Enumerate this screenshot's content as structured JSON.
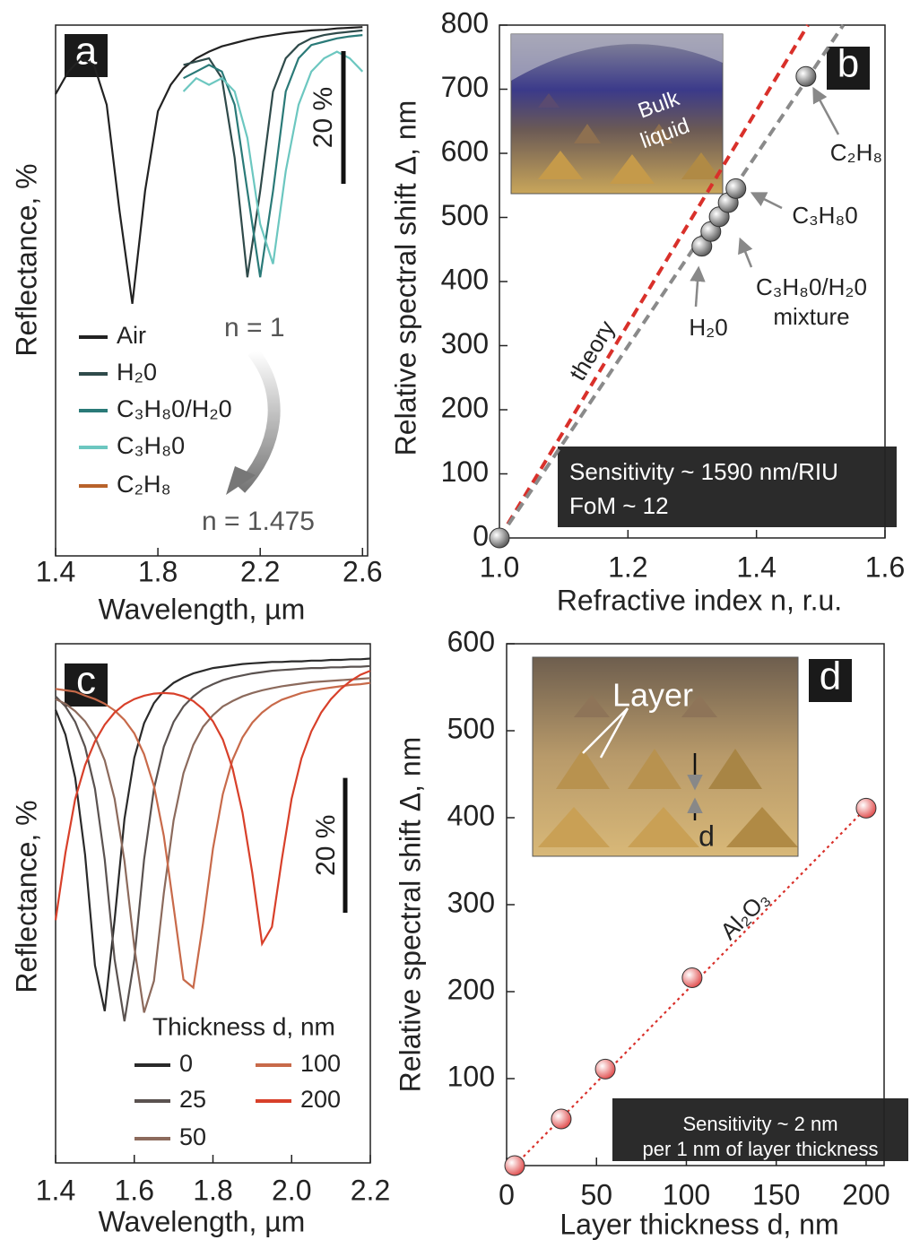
{
  "chart_data": [
    {
      "type": "line",
      "panel_label": "a",
      "x": [
        1.4,
        1.45,
        1.5,
        1.55,
        1.6,
        1.65,
        1.7,
        1.75,
        1.8,
        1.85,
        1.9,
        1.95,
        2.0,
        2.05,
        2.1,
        2.15,
        2.2,
        2.25,
        2.3,
        2.35,
        2.4,
        2.45,
        2.5,
        2.55,
        2.6
      ],
      "xlim": [
        1.4,
        2.62
      ],
      "ylim": [
        0,
        80
      ],
      "xticks": [
        1.4,
        1.8,
        2.2,
        2.6
      ],
      "xlabel": "Wavelength, µm",
      "ylabel": "Reflectance, %",
      "legend": "lower left",
      "series": [
        {
          "name": "Air",
          "color": "#222222",
          "values": [
            69.6,
            73,
            75,
            74,
            68,
            52,
            38,
            55,
            67,
            71,
            73.5,
            75,
            76,
            76.8,
            77.3,
            77.8,
            78.2,
            78.5,
            78.8,
            79,
            79.2,
            79.3,
            79.5,
            79.6,
            79.7
          ]
        },
        {
          "name": "H₂0",
          "color": "#2f4a4a",
          "values": [
            null,
            null,
            null,
            null,
            null,
            null,
            null,
            null,
            null,
            null,
            74,
            74.5,
            75,
            72,
            60,
            42,
            55,
            70,
            75,
            77,
            78,
            78.5,
            78.8,
            79,
            79.2
          ]
        },
        {
          "name": "C₃H₈0/H₂0",
          "color": "#2a7a78",
          "values": [
            null,
            null,
            null,
            null,
            null,
            null,
            null,
            null,
            null,
            null,
            72,
            73,
            74,
            73,
            68,
            55,
            42,
            55,
            70,
            75,
            77,
            77.5,
            78,
            78.3,
            78.5
          ]
        },
        {
          "name": "C₃H₈0",
          "color": "#6cc7c0",
          "values": [
            null,
            null,
            null,
            null,
            null,
            null,
            null,
            null,
            null,
            null,
            70,
            72,
            71,
            72,
            70,
            63,
            50,
            44,
            58,
            68,
            73,
            75,
            76,
            75,
            73
          ]
        },
        {
          "name": "C₂H₈",
          "color": "#b8622a",
          "values": [
            null,
            null,
            null,
            null,
            null,
            null,
            null,
            null,
            null,
            null,
            null,
            null,
            null,
            null,
            null,
            null,
            null,
            null,
            null,
            null,
            null,
            null,
            null,
            null,
            null
          ]
        }
      ],
      "scale_bar": {
        "value": 20,
        "label": "20 %"
      },
      "annotations": [
        "n = 1",
        "n = 1.475"
      ]
    },
    {
      "type": "scatter",
      "panel_label": "b",
      "xlim": [
        1.0,
        1.6
      ],
      "ylim": [
        0,
        800
      ],
      "xticks": [
        {
          "value": 1.0,
          "label": "1.0"
        },
        1.2,
        1.4,
        1.6
      ],
      "yticks": [
        0,
        100,
        200,
        300,
        400,
        500,
        600,
        700,
        800
      ],
      "xlabel": "Refractive index n, r.u.",
      "ylabel": "Relative spectral shift Δ, nm",
      "series": [
        {
          "name": "theory",
          "color": "#d9302a",
          "mode": "line",
          "dash": "dashed",
          "x": [
            1.0,
            1.48
          ],
          "values": [
            0,
            800
          ]
        },
        {
          "color": "#8a8a8a",
          "mode": "line",
          "dash": "dashed",
          "x": [
            1.0,
            1.535
          ],
          "values": [
            0,
            800
          ]
        },
        {
          "color": "#555555",
          "mode": "markers",
          "x": [
            1.0,
            1.315,
            1.329,
            1.342,
            1.356,
            1.368,
            1.477
          ],
          "values": [
            0,
            455,
            478,
            501,
            523,
            545,
            720
          ]
        }
      ],
      "annotations": [
        "Bulk",
        "liquid",
        "C₂H₈",
        "C₃H₈0",
        "C₃H₈0/H₂0",
        "mixture",
        "H₂0",
        "Sensitivity ~ 1590 nm/RIU",
        "FoM ~ 12"
      ]
    },
    {
      "type": "line",
      "panel_label": "c",
      "x": [
        1.4,
        1.425,
        1.45,
        1.475,
        1.5,
        1.525,
        1.55,
        1.575,
        1.6,
        1.625,
        1.65,
        1.675,
        1.7,
        1.725,
        1.75,
        1.775,
        1.8,
        1.825,
        1.85,
        1.875,
        1.9,
        1.925,
        1.95,
        1.975,
        2.0,
        2.025,
        2.05,
        2.075,
        2.1,
        2.125,
        2.15,
        2.175,
        2.2
      ],
      "xlim": [
        1.4,
        2.2
      ],
      "ylim": [
        0,
        77
      ],
      "xticks": [
        1.4,
        1.6,
        1.8,
        {
          "value": 2.0,
          "label": "2.0"
        },
        2.2
      ],
      "xlabel": "Wavelength, µm",
      "ylabel": "Reflectance, %",
      "legend": "lower center",
      "series": [
        {
          "name": "0",
          "color": "#2a2a2a",
          "values": [
            67.2,
            63.5,
            57.1,
            45.7,
            29.3,
            22.5,
            36,
            51,
            60.1,
            65.2,
            68.2,
            70,
            71.2,
            72,
            72.6,
            73,
            73.4,
            73.6,
            73.8,
            74,
            74.1,
            74.2,
            74.3,
            74.3,
            74.4,
            74.4,
            74.5,
            74.5,
            74.6,
            74.6,
            74.7,
            74.7,
            74.8
          ]
        },
        {
          "name": "25",
          "color": "#5a5250",
          "values": [
            69.2,
            67.7,
            65.4,
            61.7,
            55.5,
            45,
            30.2,
            21,
            30.2,
            45,
            55.5,
            61.7,
            65.4,
            67.7,
            69.2,
            70.3,
            71,
            71.6,
            72,
            72.3,
            72.6,
            72.8,
            73,
            73.1,
            73.2,
            73.3,
            73.4,
            73.4,
            73.5,
            73.5,
            73.6,
            73.6,
            73.7
          ]
        },
        {
          "name": "50",
          "color": "#8c6a5c",
          "values": [
            68.8,
            68.1,
            67,
            65.5,
            63.2,
            59.7,
            54,
            44.8,
            32,
            22.3,
            27,
            40,
            50.8,
            57.8,
            62,
            64.7,
            66.4,
            67.7,
            68.5,
            69.2,
            69.7,
            70.1,
            70.4,
            70.7,
            70.9,
            71.1,
            71.3,
            71.4,
            71.5,
            71.6,
            71.7,
            71.8,
            71.9
          ]
        },
        {
          "name": "100",
          "color": "#c86a4a",
          "values": [
            70.3,
            70.1,
            69.9,
            69.3,
            68.8,
            68.1,
            67.1,
            65.7,
            63.7,
            60.6,
            55.9,
            48.5,
            38,
            27.2,
            26,
            35.6,
            46.6,
            54.7,
            59.8,
            63.1,
            65.3,
            66.8,
            67.9,
            68.7,
            69.2,
            69.7,
            70,
            70.3,
            70.5,
            70.7,
            70.9,
            71,
            71.2
          ]
        },
        {
          "name": "200",
          "color": "#d8402a",
          "values": [
            36,
            46,
            54,
            59,
            62.5,
            65,
            66.8,
            68,
            68.8,
            69.3,
            69.6,
            69.7,
            69.6,
            69.2,
            68.5,
            67.3,
            65.5,
            62.8,
            58.5,
            52,
            43,
            32.5,
            35,
            45,
            54,
            60,
            64,
            66.8,
            68.8,
            70.3,
            71.5,
            72.4,
            73
          ]
        }
      ],
      "scale_bar": {
        "value": 20,
        "label": "20 %"
      },
      "annotations": [
        "Thickness d, nm"
      ]
    },
    {
      "type": "scatter",
      "panel_label": "d",
      "xlim": [
        0,
        210
      ],
      "ylim": [
        0,
        600
      ],
      "xticks": [
        0,
        50,
        100,
        150,
        200
      ],
      "yticks": [
        100,
        200,
        300,
        400,
        500,
        600
      ],
      "xlabel": "Layer thickness d, nm",
      "ylabel": "Relative spectral shift Δ, nm",
      "series": [
        {
          "name": "Al₂O₃",
          "color": "#d9302a",
          "mode": "line",
          "dash": "dotted",
          "x": [
            4.5,
            200
          ],
          "values": [
            0,
            411
          ]
        },
        {
          "color": "#e04a4a",
          "mode": "markers",
          "x": [
            4.5,
            30.4,
            54.9,
            103.2,
            200
          ],
          "values": [
            0,
            53.6,
            111,
            216,
            411
          ]
        }
      ],
      "annotations": [
        "Layer",
        "d",
        "Sensitivity ~ 2 nm",
        "per 1 nm of layer thickness"
      ]
    }
  ]
}
